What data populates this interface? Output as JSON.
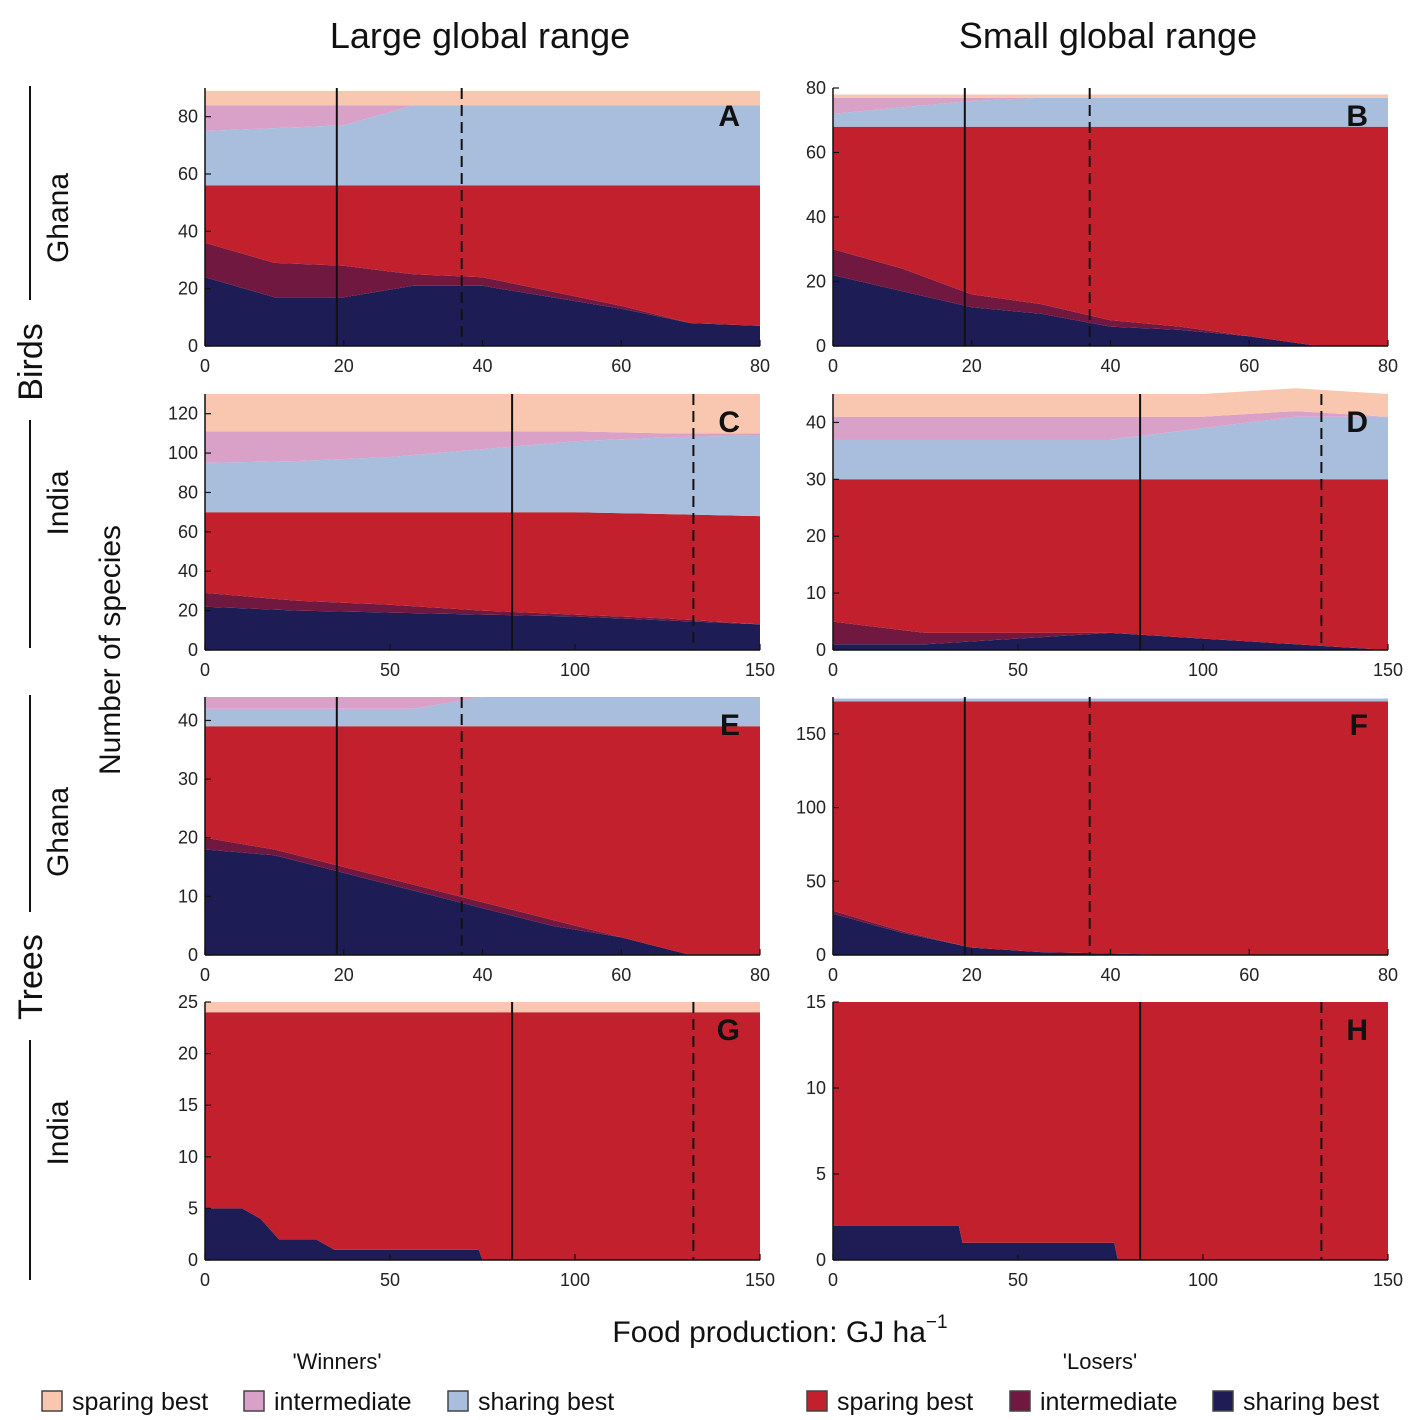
{
  "colors": {
    "winner_sparing": "#f9c6b0",
    "winner_intermediate": "#d9a0c8",
    "winner_sharing": "#a9bddc",
    "loser_sparing": "#c1202c",
    "loser_intermediate": "#701840",
    "loser_sharing": "#1e1c54"
  },
  "chart_data": [
    {
      "id": "A",
      "type": "area",
      "taxon": "Birds",
      "region": "Ghana",
      "range": "Large global range",
      "xlim": [
        0,
        80
      ],
      "ylim": [
        0,
        90
      ],
      "xticks": [
        0,
        20,
        40,
        60,
        80
      ],
      "yticks": [
        0,
        20,
        40,
        60,
        80
      ],
      "vlines": {
        "solid": 19,
        "dashed": 37
      },
      "x": [
        0,
        10,
        20,
        30,
        40,
        50,
        60,
        70,
        80
      ],
      "series": [
        {
          "name": "loser_sharing",
          "values": [
            24,
            17,
            17,
            21,
            21,
            17,
            13,
            8,
            7
          ]
        },
        {
          "name": "loser_intermediate",
          "values": [
            12,
            12,
            11,
            4,
            3,
            2,
            1,
            0,
            0
          ]
        },
        {
          "name": "loser_sparing",
          "values": [
            20,
            27,
            28,
            31,
            32,
            37,
            42,
            48,
            49
          ]
        },
        {
          "name": "winner_sharing",
          "values": [
            19,
            20,
            21,
            28,
            28,
            28,
            28,
            28,
            28
          ]
        },
        {
          "name": "winner_intermediate",
          "values": [
            9,
            8,
            7,
            0,
            0,
            0,
            0,
            0,
            0
          ]
        },
        {
          "name": "winner_sparing",
          "values": [
            5,
            5,
            5,
            5,
            5,
            5,
            5,
            5,
            5
          ]
        }
      ]
    },
    {
      "id": "B",
      "type": "area",
      "taxon": "Birds",
      "region": "Ghana",
      "range": "Small global range",
      "xlim": [
        0,
        80
      ],
      "ylim": [
        0,
        80
      ],
      "xticks": [
        0,
        20,
        40,
        60,
        80
      ],
      "yticks": [
        0,
        20,
        40,
        60,
        80
      ],
      "vlines": {
        "solid": 19,
        "dashed": 37
      },
      "x": [
        0,
        10,
        20,
        30,
        40,
        50,
        60,
        70,
        80
      ],
      "series": [
        {
          "name": "loser_sharing",
          "values": [
            22,
            17,
            12,
            10,
            6,
            5,
            3,
            0,
            0
          ]
        },
        {
          "name": "loser_intermediate",
          "values": [
            8,
            7,
            4,
            3,
            2,
            1,
            0,
            0,
            0
          ]
        },
        {
          "name": "loser_sparing",
          "values": [
            38,
            44,
            52,
            55,
            60,
            62,
            65,
            68,
            68
          ]
        },
        {
          "name": "winner_sharing",
          "values": [
            4,
            6,
            8,
            9,
            9,
            9,
            9,
            9,
            9
          ]
        },
        {
          "name": "winner_intermediate",
          "values": [
            5,
            3,
            1,
            0,
            0,
            0,
            0,
            0,
            0
          ]
        },
        {
          "name": "winner_sparing",
          "values": [
            1,
            1,
            1,
            1,
            1,
            1,
            1,
            1,
            1
          ]
        }
      ]
    },
    {
      "id": "C",
      "type": "area",
      "taxon": "Birds",
      "region": "India",
      "range": "Large global range",
      "xlim": [
        0,
        150
      ],
      "ylim": [
        0,
        130
      ],
      "xticks": [
        0,
        50,
        100,
        150
      ],
      "yticks": [
        0,
        20,
        40,
        60,
        80,
        100,
        120
      ],
      "vlines": {
        "solid": 83,
        "dashed": 132
      },
      "x": [
        0,
        25,
        50,
        75,
        100,
        125,
        150
      ],
      "series": [
        {
          "name": "loser_sharing",
          "values": [
            22,
            20,
            19,
            18,
            17,
            15,
            13
          ]
        },
        {
          "name": "loser_intermediate",
          "values": [
            7,
            5,
            4,
            2,
            1,
            1,
            0
          ]
        },
        {
          "name": "loser_sparing",
          "values": [
            41,
            45,
            47,
            50,
            52,
            53,
            55
          ]
        },
        {
          "name": "winner_sharing",
          "values": [
            25,
            26,
            28,
            32,
            36,
            39,
            41
          ]
        },
        {
          "name": "winner_intermediate",
          "values": [
            16,
            15,
            13,
            9,
            5,
            2,
            1
          ]
        },
        {
          "name": "winner_sparing",
          "values": [
            19,
            19,
            19,
            19,
            19,
            20,
            20
          ]
        }
      ]
    },
    {
      "id": "D",
      "type": "area",
      "taxon": "Birds",
      "region": "India",
      "range": "Small global range",
      "xlim": [
        0,
        150
      ],
      "ylim": [
        0,
        45
      ],
      "xticks": [
        0,
        50,
        100,
        150
      ],
      "yticks": [
        0,
        10,
        20,
        30,
        40
      ],
      "vlines": {
        "solid": 83,
        "dashed": 132
      },
      "x": [
        0,
        25,
        50,
        75,
        100,
        125,
        150
      ],
      "series": [
        {
          "name": "loser_sharing",
          "values": [
            1,
            1,
            2,
            3,
            2,
            1,
            0
          ]
        },
        {
          "name": "loser_intermediate",
          "values": [
            4,
            2,
            1,
            0,
            0,
            0,
            0
          ]
        },
        {
          "name": "loser_sparing",
          "values": [
            25,
            27,
            27,
            27,
            28,
            29,
            30
          ]
        },
        {
          "name": "winner_sharing",
          "values": [
            7,
            7,
            7,
            7,
            9,
            11,
            11
          ]
        },
        {
          "name": "winner_intermediate",
          "values": [
            4,
            4,
            4,
            4,
            2,
            1,
            0
          ]
        },
        {
          "name": "winner_sparing",
          "values": [
            4,
            4,
            4,
            4,
            4,
            4,
            4
          ]
        }
      ]
    },
    {
      "id": "E",
      "type": "area",
      "taxon": "Trees",
      "region": "Ghana",
      "range": "Large global range",
      "xlim": [
        0,
        80
      ],
      "ylim": [
        0,
        44
      ],
      "xticks": [
        0,
        20,
        40,
        60,
        80
      ],
      "yticks": [
        0,
        10,
        20,
        30,
        40
      ],
      "vlines": {
        "solid": 19,
        "dashed": 37
      },
      "x": [
        0,
        10,
        20,
        30,
        40,
        50,
        60,
        70,
        80
      ],
      "series": [
        {
          "name": "loser_sharing",
          "values": [
            18,
            17,
            14,
            11,
            8,
            5,
            3,
            0,
            0
          ]
        },
        {
          "name": "loser_intermediate",
          "values": [
            2,
            1,
            1,
            1,
            1,
            1,
            0,
            0,
            0
          ]
        },
        {
          "name": "loser_sparing",
          "values": [
            19,
            21,
            24,
            27,
            30,
            33,
            36,
            39,
            39
          ]
        },
        {
          "name": "winner_sharing",
          "values": [
            3,
            3,
            3,
            3,
            5,
            5,
            5,
            5,
            5
          ]
        },
        {
          "name": "winner_intermediate",
          "values": [
            2,
            2,
            2,
            2,
            0,
            0,
            0,
            0,
            0
          ]
        },
        {
          "name": "winner_sparing",
          "values": [
            0,
            0,
            0,
            0,
            0,
            0,
            0,
            0,
            0
          ]
        }
      ]
    },
    {
      "id": "F",
      "type": "area",
      "taxon": "Trees",
      "region": "Ghana",
      "range": "Small global range",
      "xlim": [
        0,
        80
      ],
      "ylim": [
        0,
        175
      ],
      "xticks": [
        0,
        20,
        40,
        60,
        80
      ],
      "yticks": [
        0,
        50,
        100,
        150
      ],
      "vlines": {
        "solid": 19,
        "dashed": 37
      },
      "x": [
        0,
        10,
        20,
        30,
        40,
        50,
        60,
        70,
        80
      ],
      "series": [
        {
          "name": "loser_sharing",
          "values": [
            28,
            15,
            5,
            2,
            1,
            0,
            0,
            0,
            0
          ]
        },
        {
          "name": "loser_intermediate",
          "values": [
            2,
            1,
            0,
            0,
            0,
            0,
            0,
            0,
            0
          ]
        },
        {
          "name": "loser_sparing",
          "values": [
            142,
            156,
            167,
            170,
            171,
            172,
            172,
            172,
            172
          ]
        },
        {
          "name": "winner_sharing",
          "values": [
            2,
            2,
            2,
            2,
            2,
            2,
            2,
            2,
            2
          ]
        },
        {
          "name": "winner_intermediate",
          "values": [
            0,
            0,
            0,
            0,
            0,
            0,
            0,
            0,
            0
          ]
        },
        {
          "name": "winner_sparing",
          "values": [
            0,
            0,
            0,
            0,
            0,
            0,
            0,
            0,
            0
          ]
        }
      ]
    },
    {
      "id": "G",
      "type": "area",
      "taxon": "Trees",
      "region": "India",
      "range": "Large global range",
      "xlim": [
        0,
        150
      ],
      "ylim": [
        0,
        25
      ],
      "xticks": [
        0,
        50,
        100,
        150
      ],
      "yticks": [
        0,
        5,
        10,
        15,
        20,
        25
      ],
      "vlines": {
        "solid": 83,
        "dashed": 132
      },
      "x": [
        0,
        10,
        15,
        20,
        30,
        35,
        50,
        74,
        75,
        100,
        150
      ],
      "series": [
        {
          "name": "loser_sharing",
          "values": [
            5,
            5,
            4,
            2,
            2,
            1,
            1,
            1,
            0,
            0,
            0
          ]
        },
        {
          "name": "loser_intermediate",
          "values": [
            0,
            0,
            0,
            0,
            0,
            0,
            0,
            0,
            0,
            0,
            0
          ]
        },
        {
          "name": "loser_sparing",
          "values": [
            19,
            19,
            20,
            22,
            22,
            23,
            23,
            23,
            24,
            24,
            24
          ]
        },
        {
          "name": "winner_sharing",
          "values": [
            0,
            0,
            0,
            0,
            0,
            0,
            0,
            0,
            0,
            0,
            0
          ]
        },
        {
          "name": "winner_intermediate",
          "values": [
            0,
            0,
            0,
            0,
            0,
            0,
            0,
            0,
            0,
            0,
            0
          ]
        },
        {
          "name": "winner_sparing",
          "values": [
            1,
            1,
            1,
            1,
            1,
            1,
            1,
            1,
            1,
            1,
            1
          ]
        }
      ]
    },
    {
      "id": "H",
      "type": "area",
      "taxon": "Trees",
      "region": "India",
      "range": "Small global range",
      "xlim": [
        0,
        150
      ],
      "ylim": [
        0,
        15
      ],
      "xticks": [
        0,
        50,
        100,
        150
      ],
      "yticks": [
        0,
        5,
        10,
        15
      ],
      "vlines": {
        "solid": 83,
        "dashed": 132
      },
      "x": [
        0,
        34,
        35,
        76,
        77,
        150
      ],
      "series": [
        {
          "name": "loser_sharing",
          "values": [
            2,
            2,
            1,
            1,
            0,
            0
          ]
        },
        {
          "name": "loser_intermediate",
          "values": [
            0,
            0,
            0,
            0,
            0,
            0
          ]
        },
        {
          "name": "loser_sparing",
          "values": [
            13,
            13,
            14,
            14,
            15,
            15
          ]
        },
        {
          "name": "winner_sharing",
          "values": [
            0,
            0,
            0,
            0,
            0,
            0
          ]
        },
        {
          "name": "winner_intermediate",
          "values": [
            0,
            0,
            0,
            0,
            0,
            0
          ]
        },
        {
          "name": "winner_sparing",
          "values": [
            0,
            0,
            0,
            0,
            0,
            0
          ]
        }
      ]
    }
  ],
  "labels": {
    "col_left": "Large global range",
    "col_right": "Small global range",
    "birds": "Birds",
    "trees": "Trees",
    "ghana": "Ghana",
    "india": "India",
    "ylabel": "Number of species",
    "xlabel_main": "Food production: GJ ha",
    "xlabel_sup": "−1"
  },
  "legend": {
    "winners_title": "'Winners'",
    "losers_title": "'Losers'",
    "winners": [
      {
        "key": "winner_sparing",
        "label": "sparing best"
      },
      {
        "key": "winner_intermediate",
        "label": "intermediate"
      },
      {
        "key": "winner_sharing",
        "label": "sharing best"
      }
    ],
    "losers": [
      {
        "key": "loser_sparing",
        "label": "sparing best"
      },
      {
        "key": "loser_intermediate",
        "label": "intermediate"
      },
      {
        "key": "loser_sharing",
        "label": "sharing best"
      }
    ]
  }
}
